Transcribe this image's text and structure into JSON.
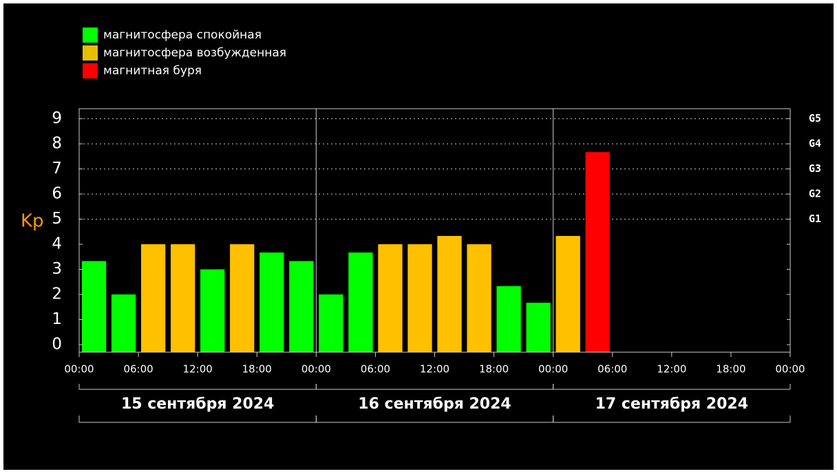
{
  "chart_data": {
    "type": "bar",
    "legend": [
      {
        "name": "магнитосфера спокойная",
        "color": "#00ff00"
      },
      {
        "name": "магнитосфера возбужденная",
        "color": "#e6c000"
      },
      {
        "name": "магнитная буря",
        "color": "#ff0000"
      }
    ],
    "ylabel": "Kp",
    "x": [
      1.5,
      4.5,
      7.5,
      10.5,
      13.5,
      16.5,
      19.5,
      22.5,
      25.5,
      28.5,
      31.5,
      34.5,
      37.5,
      40.5,
      43.5,
      46.5,
      49.5,
      52.5
    ],
    "values": [
      3.33,
      2,
      4,
      4,
      3,
      4,
      3.67,
      3.33,
      2,
      3.67,
      4,
      4,
      4.33,
      4,
      2.33,
      1.67,
      4.33,
      7.67
    ],
    "colors": [
      "#00ff00",
      "#00ff00",
      "#ffc000",
      "#ffc000",
      "#00ff00",
      "#ffc000",
      "#00ff00",
      "#00ff00",
      "#00ff00",
      "#00ff00",
      "#ffc000",
      "#ffc000",
      "#ffc000",
      "#ffc000",
      "#00ff00",
      "#00ff00",
      "#ffc000",
      "#ff0000"
    ],
    "xlim": [
      0,
      72
    ],
    "xticks": [
      {
        "value": 0,
        "label": "00:00"
      },
      {
        "value": 6,
        "label": "06:00"
      },
      {
        "value": 12,
        "label": "12:00"
      },
      {
        "value": 18,
        "label": "18:00"
      },
      {
        "value": 24,
        "label": "00:00"
      },
      {
        "value": 30,
        "label": "06:00"
      },
      {
        "value": 36,
        "label": "12:00"
      },
      {
        "value": 42,
        "label": "18:00"
      },
      {
        "value": 48,
        "label": "00:00"
      },
      {
        "value": 54,
        "label": "06:00"
      },
      {
        "value": 60,
        "label": "12:00"
      },
      {
        "value": 66,
        "label": "18:00"
      },
      {
        "value": 72,
        "label": "00:00"
      }
    ],
    "ylim": [
      -0.3,
      9.4
    ],
    "yticks": [
      0,
      1,
      2,
      3,
      4,
      5,
      6,
      7,
      8,
      9
    ],
    "y2ticks": [
      {
        "value": 5,
        "label": "G1"
      },
      {
        "value": 6,
        "label": "G2"
      },
      {
        "value": 7,
        "label": "G3"
      },
      {
        "value": 8,
        "label": "G4"
      },
      {
        "value": 9,
        "label": "G5"
      }
    ],
    "days": [
      {
        "label": "15 сентября 2024",
        "start": 0,
        "end": 24
      },
      {
        "label": "16 сентября 2024",
        "start": 24,
        "end": 48
      },
      {
        "label": "17 сентября 2024",
        "start": 48,
        "end": 72
      }
    ],
    "grid": true
  }
}
